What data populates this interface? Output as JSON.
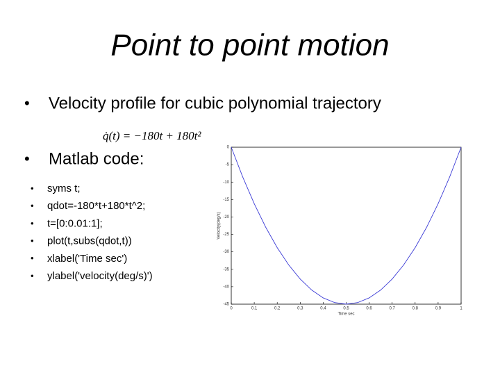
{
  "title": "Point to point motion",
  "bullets": [
    "Velocity profile for cubic polynomial trajectory",
    "Matlab code:"
  ],
  "equation": "q̇(t) = −180t + 180t²",
  "code": [
    "syms t;",
    "qdot=-180*t+180*t^2;",
    "t=[0:0.01:1];",
    "plot(t,subs(qdot,t))",
    " xlabel('Time sec')",
    "ylabel('velocity(deg/s)')"
  ],
  "chart_data": {
    "type": "line",
    "x": [
      0,
      0.05,
      0.1,
      0.15,
      0.2,
      0.25,
      0.3,
      0.35,
      0.4,
      0.45,
      0.5,
      0.55,
      0.6,
      0.65,
      0.7,
      0.75,
      0.8,
      0.85,
      0.9,
      0.95,
      1
    ],
    "values": [
      0,
      -8.55,
      -16.2,
      -22.95,
      -28.8,
      -33.75,
      -37.8,
      -40.95,
      -43.2,
      -44.55,
      -45,
      -44.55,
      -43.2,
      -40.95,
      -37.8,
      -33.75,
      -28.8,
      -22.95,
      -16.2,
      -8.55,
      0
    ],
    "color": "#3b3bd6",
    "xlabel": "Time sec",
    "ylabel": "Velocity(deg/s)",
    "xlim": [
      0,
      1
    ],
    "ylim": [
      -45,
      0
    ],
    "xticks": [
      0,
      0.1,
      0.2,
      0.3,
      0.4,
      0.5,
      0.6,
      0.7,
      0.8,
      0.9,
      1
    ],
    "yticks": [
      0,
      -5,
      -10,
      -15,
      -20,
      -25,
      -30,
      -35,
      -40,
      -45
    ],
    "grid": false
  }
}
